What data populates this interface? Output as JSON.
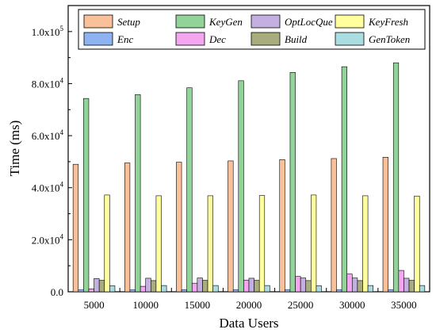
{
  "chart_data": {
    "type": "bar",
    "xlabel": "Data Users",
    "ylabel": "Time (ms)",
    "categories": [
      "5000",
      "10000",
      "15000",
      "20000",
      "25000",
      "30000",
      "35000"
    ],
    "ylim": [
      0,
      110000
    ],
    "yticks": [
      0,
      20000,
      40000,
      60000,
      80000,
      100000
    ],
    "ytick_labels": [
      {
        "mantissa": "0.0",
        "exp": ""
      },
      {
        "mantissa": "2.0x10",
        "exp": "4"
      },
      {
        "mantissa": "4.0x10",
        "exp": "4"
      },
      {
        "mantissa": "6.0x10",
        "exp": "4"
      },
      {
        "mantissa": "8.0x10",
        "exp": "4"
      },
      {
        "mantissa": "1.0x10",
        "exp": "5"
      }
    ],
    "legend_position": "top",
    "series": [
      {
        "name": "Setup",
        "color": "#F9C09A",
        "values": [
          49000,
          49500,
          49800,
          50300,
          50800,
          51200,
          51700
        ]
      },
      {
        "name": "Enc",
        "color": "#8EB3F2",
        "values": [
          700,
          700,
          700,
          700,
          700,
          700,
          700
        ]
      },
      {
        "name": "KeyGen",
        "color": "#92D39A",
        "values": [
          74300,
          75800,
          78400,
          81100,
          84300,
          86500,
          88000
        ]
      },
      {
        "name": "Dec",
        "color": "#F4A6F0",
        "values": [
          1100,
          2100,
          3300,
          4500,
          5900,
          6800,
          8200
        ]
      },
      {
        "name": "OptLocQue",
        "color": "#C3B0E0",
        "values": [
          5100,
          5200,
          5300,
          5200,
          5300,
          5300,
          5200
        ]
      },
      {
        "name": "Build",
        "color": "#A9AC7D",
        "values": [
          4400,
          4300,
          4400,
          4400,
          4300,
          4300,
          4400
        ]
      },
      {
        "name": "KeyFresh",
        "color": "#FFFF9E",
        "values": [
          37200,
          36900,
          36900,
          37000,
          37200,
          36900,
          36800
        ]
      },
      {
        "name": "GenToken",
        "color": "#A9DDE2",
        "values": [
          2300,
          2400,
          2400,
          2400,
          2300,
          2400,
          2400
        ]
      }
    ],
    "grid": false
  }
}
